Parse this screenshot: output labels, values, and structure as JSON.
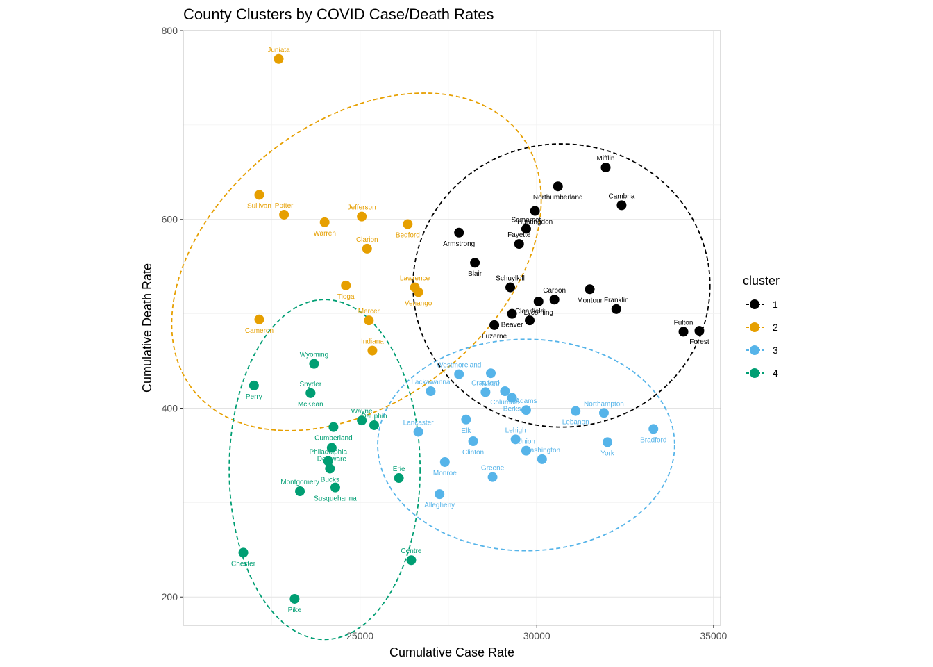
{
  "chart_data": {
    "type": "scatter",
    "title": "County Clusters by COVID Case/Death Rates",
    "xlabel": "Cumulative Case Rate",
    "ylabel": "Cumulative Death Rate",
    "xlim": [
      20000,
      35200
    ],
    "ylim": [
      170,
      800
    ],
    "x_ticks": [
      25000,
      30000,
      35000
    ],
    "y_ticks": [
      200,
      400,
      600,
      800
    ],
    "grid": true,
    "legend": {
      "title": "cluster",
      "placement": "right"
    },
    "clusters": [
      {
        "name": "1",
        "color": "#000000",
        "ellipse": {
          "cx": 30700,
          "cy": 530,
          "rx": 4200,
          "ry": 150
        },
        "points": [
          {
            "label": "Mifflin",
            "x": 31950,
            "y": 655
          },
          {
            "label": "Northumberland",
            "x": 30600,
            "y": 635
          },
          {
            "label": "Cambria",
            "x": 32400,
            "y": 615
          },
          {
            "label": "Huntingdon",
            "x": 29950,
            "y": 609
          },
          {
            "label": "Somerset",
            "x": 29700,
            "y": 590
          },
          {
            "label": "Armstrong",
            "x": 27800,
            "y": 586
          },
          {
            "label": "Fayette",
            "x": 29500,
            "y": 574
          },
          {
            "label": "Blair",
            "x": 28250,
            "y": 554
          },
          {
            "label": "Schuylkill",
            "x": 29250,
            "y": 528
          },
          {
            "label": "Montour",
            "x": 31500,
            "y": 526
          },
          {
            "label": "Carbon",
            "x": 30500,
            "y": 515
          },
          {
            "label": "Lycoming",
            "x": 30050,
            "y": 513
          },
          {
            "label": "Franklin",
            "x": 32250,
            "y": 505
          },
          {
            "label": "Beaver",
            "x": 29300,
            "y": 500
          },
          {
            "label": "Clearfield",
            "x": 29800,
            "y": 493
          },
          {
            "label": "Luzerne",
            "x": 28800,
            "y": 488
          },
          {
            "label": "Fulton",
            "x": 34150,
            "y": 481
          },
          {
            "label": "Forest",
            "x": 34600,
            "y": 482
          }
        ]
      },
      {
        "name": "2",
        "color": "#E69F00",
        "ellipse": {
          "cx": 24900,
          "cy": 555,
          "rx": 3950,
          "ry": 220,
          "angle": 52
        },
        "points": [
          {
            "label": "Juniata",
            "x": 22700,
            "y": 770
          },
          {
            "label": "Sullivan",
            "x": 22150,
            "y": 626
          },
          {
            "label": "Potter",
            "x": 22850,
            "y": 605
          },
          {
            "label": "Warren",
            "x": 24000,
            "y": 597
          },
          {
            "label": "Jefferson",
            "x": 25050,
            "y": 603
          },
          {
            "label": "Bedford",
            "x": 26350,
            "y": 595
          },
          {
            "label": "Clarion",
            "x": 25200,
            "y": 569
          },
          {
            "label": "Tioga",
            "x": 24600,
            "y": 530
          },
          {
            "label": "Lawrence",
            "x": 26550,
            "y": 528
          },
          {
            "label": "Venango",
            "x": 26650,
            "y": 523
          },
          {
            "label": "Mercer",
            "x": 25250,
            "y": 493
          },
          {
            "label": "Cameron",
            "x": 22150,
            "y": 494
          },
          {
            "label": "Indiana",
            "x": 25350,
            "y": 461
          }
        ]
      },
      {
        "name": "3",
        "color": "#56B4E9",
        "ellipse": {
          "cx": 29700,
          "cy": 361,
          "rx": 4200,
          "ry": 112
        },
        "points": [
          {
            "label": "Westmoreland",
            "x": 27800,
            "y": 436
          },
          {
            "label": "Butler",
            "x": 28700,
            "y": 437
          },
          {
            "label": "Lackawanna",
            "x": 27000,
            "y": 418
          },
          {
            "label": "Columbia",
            "x": 29100,
            "y": 418
          },
          {
            "label": "Crawford",
            "x": 28550,
            "y": 417
          },
          {
            "label": "Berks",
            "x": 29300,
            "y": 411
          },
          {
            "label": "Adams",
            "x": 29700,
            "y": 398
          },
          {
            "label": "Lebanon",
            "x": 31100,
            "y": 397
          },
          {
            "label": "Northampton",
            "x": 31900,
            "y": 395
          },
          {
            "label": "Elk",
            "x": 28000,
            "y": 388
          },
          {
            "label": "Lancaster",
            "x": 26650,
            "y": 375
          },
          {
            "label": "Bradford",
            "x": 33300,
            "y": 378
          },
          {
            "label": "Lehigh",
            "x": 29400,
            "y": 367
          },
          {
            "label": "Clinton",
            "x": 28200,
            "y": 365
          },
          {
            "label": "Union",
            "x": 29700,
            "y": 355
          },
          {
            "label": "York",
            "x": 32000,
            "y": 364
          },
          {
            "label": "Washington",
            "x": 30150,
            "y": 346
          },
          {
            "label": "Monroe",
            "x": 27400,
            "y": 343
          },
          {
            "label": "Greene",
            "x": 28750,
            "y": 327
          },
          {
            "label": "Allegheny",
            "x": 27250,
            "y": 309
          }
        ]
      },
      {
        "name": "4",
        "color": "#009E73",
        "ellipse": {
          "cx": 24000,
          "cy": 335,
          "rx": 2700,
          "ry": 180
        },
        "points": [
          {
            "label": "Wyoming",
            "x": 23700,
            "y": 447
          },
          {
            "label": "Perry",
            "x": 22000,
            "y": 424
          },
          {
            "label": "Snyder",
            "x": 23600,
            "y": 416
          },
          {
            "label": "McKean",
            "x": 23600,
            "y": 416
          },
          {
            "label": "Wayne",
            "x": 25050,
            "y": 387
          },
          {
            "label": "Cumberland",
            "x": 24250,
            "y": 380
          },
          {
            "label": "Dauphin",
            "x": 25400,
            "y": 382
          },
          {
            "label": "Delaware",
            "x": 24200,
            "y": 358
          },
          {
            "label": "Philadelphia",
            "x": 24100,
            "y": 344
          },
          {
            "label": "Bucks",
            "x": 24150,
            "y": 336
          },
          {
            "label": "Erie",
            "x": 26100,
            "y": 326
          },
          {
            "label": "Susquehanna",
            "x": 24300,
            "y": 316
          },
          {
            "label": "Montgomery",
            "x": 23300,
            "y": 312
          },
          {
            "label": "Chester",
            "x": 21700,
            "y": 247
          },
          {
            "label": "Centre",
            "x": 26450,
            "y": 239
          },
          {
            "label": "Pike",
            "x": 23150,
            "y": 198
          }
        ]
      }
    ]
  }
}
